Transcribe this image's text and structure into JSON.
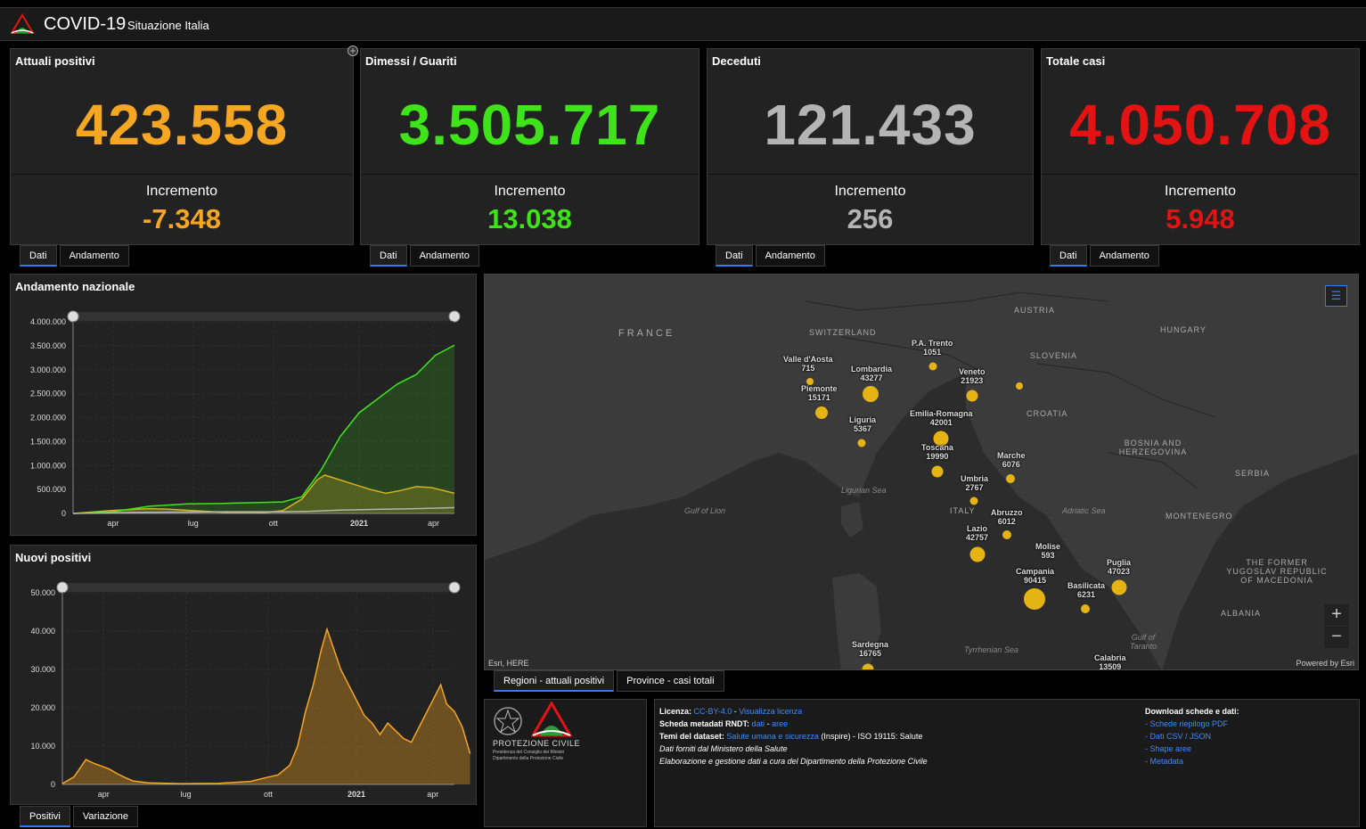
{
  "header": {
    "title": "COVID-19",
    "subtitle": "Situazione Italia"
  },
  "colors": {
    "positivi": "#f5a623",
    "guariti": "#3ee31a",
    "deceduti": "#b4b4b4",
    "totale": "#e31313",
    "accent": "#2a7fff"
  },
  "cards": [
    {
      "title": "Attuali positivi",
      "value": "423.558",
      "inc_label": "Incremento",
      "inc_value": "-7.348"
    },
    {
      "title": "Dimessi / Guariti",
      "value": "3.505.717",
      "inc_label": "Incremento",
      "inc_value": "13.038"
    },
    {
      "title": "Deceduti",
      "value": "121.433",
      "inc_label": "Incremento",
      "inc_value": "256"
    },
    {
      "title": "Totale casi",
      "value": "4.050.708",
      "inc_label": "Incremento",
      "inc_value": "5.948"
    }
  ],
  "card_tabs": {
    "dati": "Dati",
    "andamento": "Andamento"
  },
  "bottom_tabs": {
    "positivi": "Positivi",
    "variazione": "Variazione"
  },
  "map_tabs": {
    "regioni": "Regioni - attuali positivi",
    "province": "Province - casi totali"
  },
  "chart_data": [
    {
      "type": "line",
      "title": "Andamento nazionale",
      "x_ticks": [
        "apr",
        "lug",
        "ott",
        "2021",
        "apr"
      ],
      "y_ticks": [
        "0",
        "500.000",
        "1.000.000",
        "1.500.000",
        "2.000.000",
        "2.500.000",
        "3.000.000",
        "3.500.000",
        "4.000.000"
      ],
      "ylim": [
        0,
        4000000
      ],
      "x_range": [
        "2020-02-24",
        "2021-04-13"
      ],
      "series": [
        {
          "values": [
            [
              0,
              0
            ],
            [
              10,
              60000
            ],
            [
              20,
              100000
            ],
            [
              25,
              90000
            ],
            [
              40,
              20000
            ],
            [
              50,
              15000
            ],
            [
              55,
              60000
            ],
            [
              60,
              300000
            ],
            [
              64,
              700000
            ],
            [
              66,
              800000
            ],
            [
              70,
              700000
            ],
            [
              74,
              600000
            ],
            [
              78,
              500000
            ],
            [
              82,
              420000
            ],
            [
              86,
              480000
            ],
            [
              90,
              560000
            ],
            [
              94,
              540000
            ],
            [
              100,
              420000
            ]
          ]
        },
        {
          "values": [
            [
              0,
              0
            ],
            [
              10,
              30000
            ],
            [
              20,
              150000
            ],
            [
              30,
              200000
            ],
            [
              40,
              210000
            ],
            [
              55,
              240000
            ],
            [
              60,
              350000
            ],
            [
              65,
              900000
            ],
            [
              70,
              1600000
            ],
            [
              75,
              2100000
            ],
            [
              80,
              2400000
            ],
            [
              85,
              2700000
            ],
            [
              90,
              2900000
            ],
            [
              95,
              3300000
            ],
            [
              100,
              3510000
            ]
          ]
        },
        {
          "values": [
            [
              0,
              0
            ],
            [
              15,
              20000
            ],
            [
              40,
              35000
            ],
            [
              55,
              36000
            ],
            [
              62,
              45000
            ],
            [
              70,
              70000
            ],
            [
              80,
              85000
            ],
            [
              90,
              100000
            ],
            [
              100,
              121000
            ]
          ]
        }
      ]
    },
    {
      "type": "area",
      "title": "Nuovi positivi",
      "x_ticks": [
        "apr",
        "lug",
        "ott",
        "2021",
        "apr"
      ],
      "y_ticks": [
        "0",
        "10.000",
        "20.000",
        "30.000",
        "40.000",
        "50.000"
      ],
      "ylim": [
        0,
        50000
      ],
      "x_range": [
        "2020-02-24",
        "2021-04-13"
      ],
      "series": [
        {
          "values": [
            [
              0,
              200
            ],
            [
              3,
              2000
            ],
            [
              6,
              6500
            ],
            [
              8,
              5500
            ],
            [
              10,
              4800
            ],
            [
              12,
              4000
            ],
            [
              14,
              2800
            ],
            [
              16,
              1800
            ],
            [
              18,
              900
            ],
            [
              22,
              400
            ],
            [
              30,
              200
            ],
            [
              40,
              300
            ],
            [
              48,
              800
            ],
            [
              52,
              1800
            ],
            [
              55,
              2500
            ],
            [
              58,
              5000
            ],
            [
              60,
              10000
            ],
            [
              62,
              19000
            ],
            [
              64,
              26000
            ],
            [
              66,
              35000
            ],
            [
              67.5,
              40500
            ],
            [
              69,
              36000
            ],
            [
              71,
              30000
            ],
            [
              73,
              26000
            ],
            [
              75,
              22000
            ],
            [
              77,
              18000
            ],
            [
              79,
              16000
            ],
            [
              81,
              13000
            ],
            [
              83,
              16000
            ],
            [
              85,
              14000
            ],
            [
              87,
              12000
            ],
            [
              89,
              11000
            ],
            [
              91,
              15000
            ],
            [
              93,
              19000
            ],
            [
              95,
              23000
            ],
            [
              96.5,
              26000
            ],
            [
              98,
              21000
            ],
            [
              100,
              19000
            ],
            [
              102,
              15000
            ],
            [
              104,
              8000
            ]
          ]
        }
      ]
    }
  ],
  "map": {
    "countries": [
      {
        "name": "FRANCE"
      },
      {
        "name": "SWITZERLAND"
      },
      {
        "name": "AUSTRIA"
      },
      {
        "name": "HUNGARY"
      },
      {
        "name": "SLOVENIA"
      },
      {
        "name": "CROATIA"
      },
      {
        "name": "BOSNIA AND HERZEGOVINA"
      },
      {
        "name": "SERBIA"
      },
      {
        "name": "MONTENEGRO"
      },
      {
        "name": "THE FORMER YUGOSLAV REPUBLIC OF MACEDONIA"
      },
      {
        "name": "ALBANIA"
      },
      {
        "name": "ITALY"
      }
    ],
    "seas": [
      "Ligurian Sea",
      "Gulf of Lion",
      "Adriatic Sea",
      "Tyrrhenian Sea",
      "Gulf of Taranto"
    ],
    "regions": [
      {
        "name": "Valle d'Aosta",
        "value": "715"
      },
      {
        "name": "Piemonte",
        "value": "15171"
      },
      {
        "name": "Lombardia",
        "value": "43277"
      },
      {
        "name": "P.A. Trento",
        "value": "1051"
      },
      {
        "name": "Veneto",
        "value": "21923"
      },
      {
        "name": "Liguria",
        "value": "5367"
      },
      {
        "name": "Emilia-Romagna",
        "value": "42001"
      },
      {
        "name": "Toscana",
        "value": "19990"
      },
      {
        "name": "Marche",
        "value": "6076"
      },
      {
        "name": "Umbria",
        "value": "2767"
      },
      {
        "name": "Abruzzo",
        "value": "6012"
      },
      {
        "name": "Lazio",
        "value": "42757"
      },
      {
        "name": "Molise",
        "value": "593"
      },
      {
        "name": "Campania",
        "value": "90415"
      },
      {
        "name": "Puglia",
        "value": "47023"
      },
      {
        "name": "Basilicata",
        "value": "6231"
      },
      {
        "name": "Sardegna",
        "value": "16765"
      },
      {
        "name": "Calabria",
        "value": "13509"
      }
    ],
    "attribution_left": "Esri, HERE",
    "attribution_right": "Powered by Esri",
    "zoom_in": "+",
    "zoom_out": "−"
  },
  "logo": {
    "name": "PROTEZIONE CIVILE",
    "line1": "Presidenza del Consiglio dei Ministri",
    "line2": "Dipartimento della Protezione Civile"
  },
  "info": {
    "licenza_label": "Licenza:",
    "licenza_value": "CC-BY-4.0",
    "licenza_sep": " - ",
    "licenza_link": "Visualizza licenza",
    "rndt_label": "Scheda metadati RNDT:",
    "rndt_dati": "dati",
    "rndt_sep": " - ",
    "rndt_aree": "aree",
    "temi_label": "Temi del dataset:",
    "temi_link": "Salute umana e sicurezza",
    "temi_rest": " (Inspire) - ISO 19115: Salute",
    "fonte": "Dati forniti dal Ministero della Salute",
    "elaborazione": "Elaborazione e gestione dati a cura del Dipartimento della Protezione Civile",
    "download_title": "Download schede e dati:",
    "downloads": [
      "Schede riepilogo PDF",
      "Dati CSV / JSON",
      "Shape aree",
      "Metadata"
    ]
  }
}
